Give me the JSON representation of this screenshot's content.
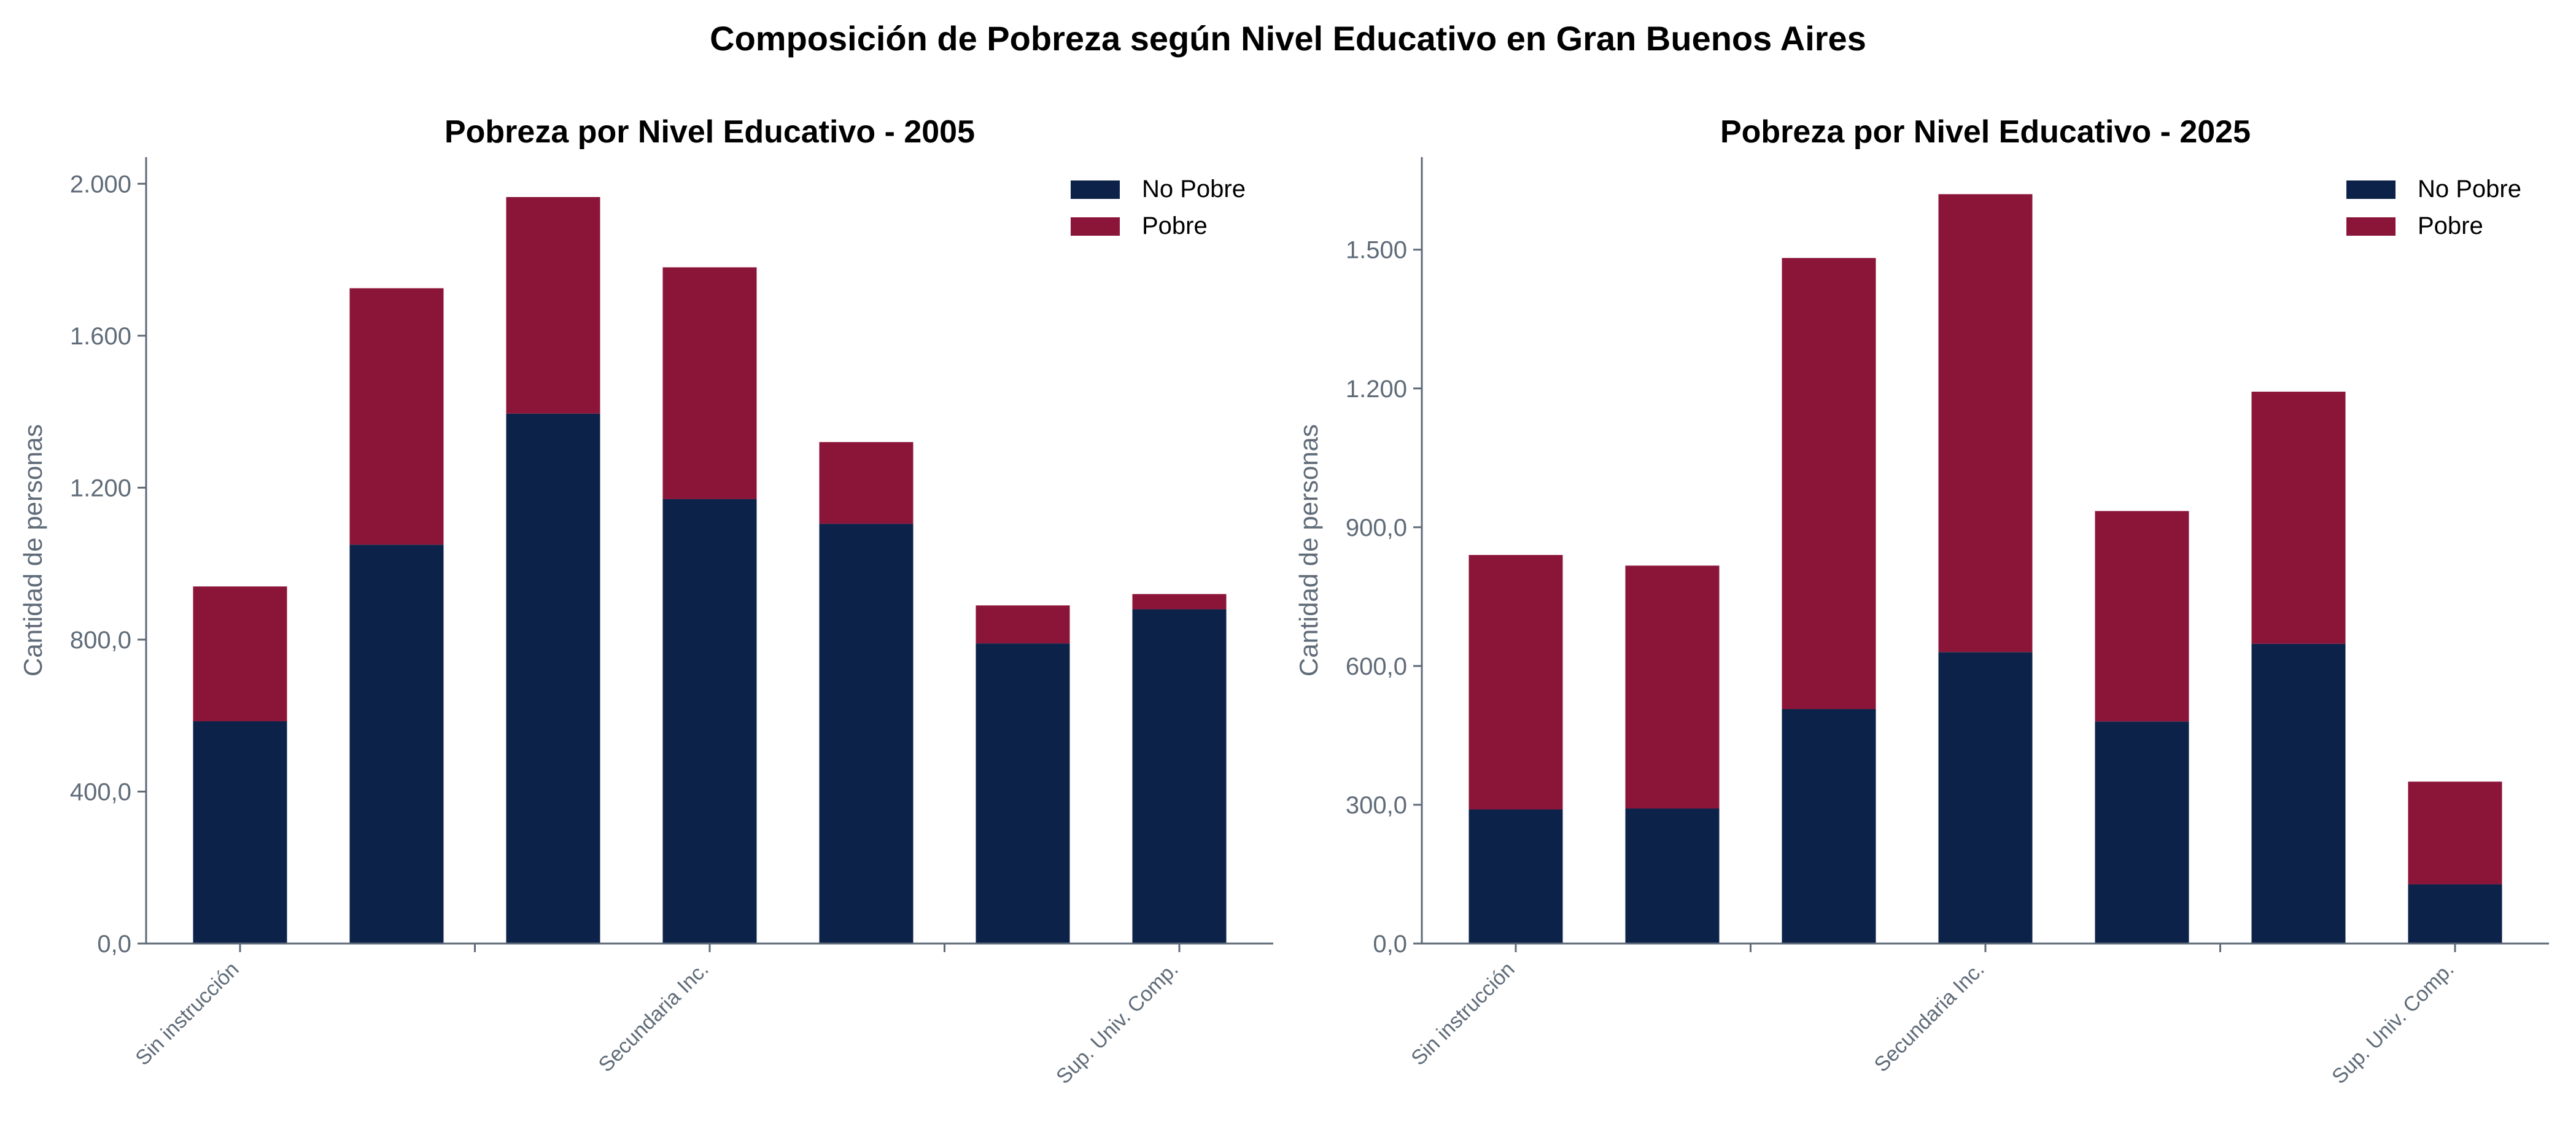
{
  "title": "Composición de Pobreza según Nivel Educativo en Gran Buenos Aires",
  "colors": {
    "no_pobre": "#0d2249",
    "pobre": "#8b1538",
    "axis": "#5f6b78"
  },
  "chart_data": [
    {
      "type": "bar",
      "stacked": true,
      "title": "Pobreza por Nivel Educativo - 2005",
      "ylabel": "Cantidad de personas",
      "ylim": [
        0,
        2070
      ],
      "yticks": [
        0,
        400,
        800,
        1200,
        1600,
        2000
      ],
      "ytick_labels": [
        "0,0",
        "400,0",
        "800,0",
        "1.200",
        "1.600",
        "2.000"
      ],
      "xtick_labels": [
        "Sin instrucción",
        "Secundaria Inc.",
        "Sup. Univ. Comp."
      ],
      "legend": "top-right",
      "series": [
        {
          "name": "No Pobre",
          "values": [
            585,
            1050,
            1395,
            1170,
            1105,
            790,
            880
          ]
        },
        {
          "name": "Pobre",
          "values": [
            355,
            675,
            570,
            610,
            215,
            100,
            40
          ]
        }
      ]
    },
    {
      "type": "bar",
      "stacked": true,
      "title": "Pobreza por Nivel Educativo - 2025",
      "ylabel": "Cantidad de personas",
      "ylim": [
        0,
        1700
      ],
      "yticks": [
        0,
        300,
        600,
        900,
        1200,
        1500
      ],
      "ytick_labels": [
        "0,0",
        "300,0",
        "600,0",
        "900,0",
        "1.200",
        "1.500"
      ],
      "xtick_labels": [
        "Sin instrucción",
        "Secundaria Inc.",
        "Sup. Univ. Comp."
      ],
      "legend": "top-right",
      "series": [
        {
          "name": "No Pobre",
          "values": [
            290,
            292,
            507,
            630,
            480,
            648,
            128
          ]
        },
        {
          "name": "Pobre",
          "values": [
            550,
            525,
            975,
            990,
            455,
            545,
            222
          ]
        }
      ]
    }
  ]
}
